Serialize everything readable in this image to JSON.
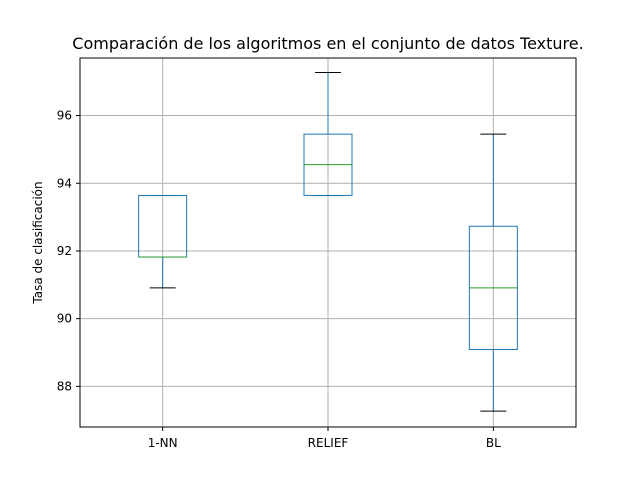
{
  "chart_data": {
    "type": "boxplot",
    "title": "Comparación de los algoritmos en el conjunto de datos Texture.",
    "xlabel": "",
    "ylabel": "Tasa de clasificación",
    "ylim": [
      86.8,
      97.7
    ],
    "yticks": [
      88,
      90,
      92,
      94,
      96
    ],
    "categories": [
      "1-NN",
      "RELIEF",
      "BL"
    ],
    "boxes": [
      {
        "category": "1-NN",
        "whisker_low": 90.91,
        "q1": 91.82,
        "median": 91.82,
        "q3": 93.64,
        "whisker_high": 93.64
      },
      {
        "category": "RELIEF",
        "whisker_low": 93.64,
        "q1": 93.64,
        "median": 94.55,
        "q3": 95.45,
        "whisker_high": 97.27
      },
      {
        "category": "BL",
        "whisker_low": 87.27,
        "q1": 89.09,
        "median": 90.91,
        "q3": 92.73,
        "whisker_high": 95.45
      }
    ],
    "grid": true,
    "colors": {
      "box": "#1f77b4",
      "median": "#2ca02c",
      "cap": "#000000",
      "grid": "#b0b0b0",
      "axis": "#000000"
    }
  }
}
